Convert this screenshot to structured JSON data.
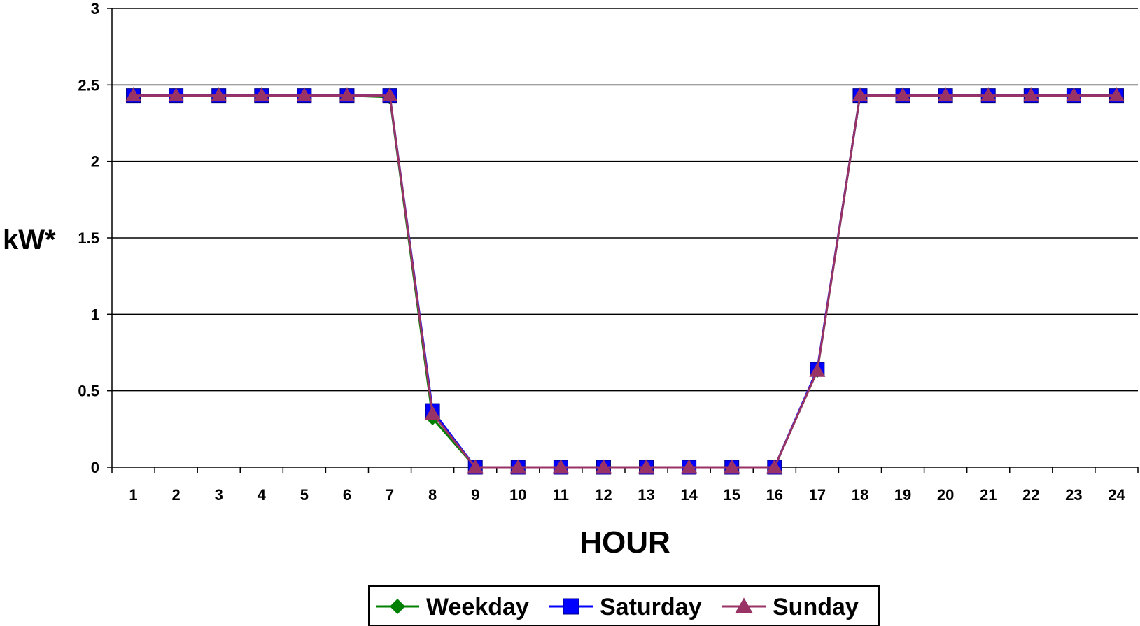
{
  "chart_data": {
    "type": "line",
    "title": "",
    "xlabel": "HOUR",
    "ylabel": "kW*",
    "categories": [
      "1",
      "2",
      "3",
      "4",
      "5",
      "6",
      "7",
      "8",
      "9",
      "10",
      "11",
      "12",
      "13",
      "14",
      "15",
      "16",
      "17",
      "18",
      "19",
      "20",
      "21",
      "22",
      "23",
      "24"
    ],
    "ylim": [
      0,
      3
    ],
    "yticks": [
      "0",
      "0.5",
      "1",
      "1.5",
      "2",
      "2.5",
      "3"
    ],
    "grid": true,
    "legend_position": "bottom",
    "series": [
      {
        "name": "Weekday",
        "color": "#008000",
        "marker": "diamond",
        "values": [
          2.43,
          2.43,
          2.43,
          2.43,
          2.43,
          2.43,
          2.42,
          0.32,
          0,
          0,
          0,
          0,
          0,
          0,
          0,
          0,
          0.63,
          2.43,
          2.43,
          2.43,
          2.43,
          2.43,
          2.43,
          2.43
        ]
      },
      {
        "name": "Saturday",
        "color": "#0000FF",
        "marker": "square",
        "values": [
          2.43,
          2.43,
          2.43,
          2.43,
          2.43,
          2.43,
          2.43,
          0.37,
          0,
          0,
          0,
          0,
          0,
          0,
          0,
          0,
          0.64,
          2.43,
          2.43,
          2.43,
          2.43,
          2.43,
          2.43,
          2.43
        ]
      },
      {
        "name": "Sunday",
        "color": "#993366",
        "marker": "triangle",
        "values": [
          2.43,
          2.43,
          2.43,
          2.43,
          2.43,
          2.43,
          2.43,
          0.35,
          0,
          0,
          0,
          0,
          0,
          0,
          0,
          0,
          0.63,
          2.43,
          2.43,
          2.43,
          2.43,
          2.43,
          2.43,
          2.43
        ]
      }
    ]
  }
}
